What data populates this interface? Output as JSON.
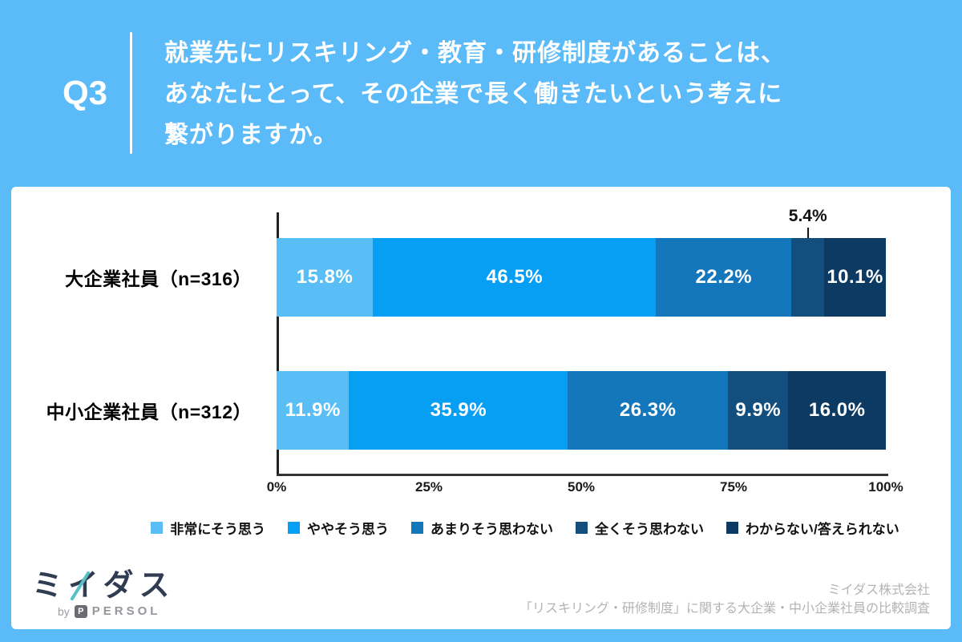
{
  "header": {
    "qnumber": "Q3",
    "question_lines": [
      "就業先にリスキリング・教育・研修制度があることは、",
      "あなたにとって、その企業で長く働きたいという考えに",
      "繋がりますか。"
    ]
  },
  "chart_data": {
    "type": "bar",
    "orientation": "horizontal-stacked",
    "unit": "percent",
    "xlim": [
      0,
      100
    ],
    "x_ticks": [
      {
        "label": "0%",
        "value": 0
      },
      {
        "label": "25%",
        "value": 25
      },
      {
        "label": "50%",
        "value": 50
      },
      {
        "label": "75%",
        "value": 75
      },
      {
        "label": "100%",
        "value": 100
      }
    ],
    "grid": false,
    "legend_position": "bottom",
    "legend": [
      {
        "label": "非常にそう思う",
        "color": "#58BEF5"
      },
      {
        "label": "ややそう思う",
        "color": "#069FF3"
      },
      {
        "label": "あまりそう思わない",
        "color": "#1477BC"
      },
      {
        "label": "全くそう思わない",
        "color": "#124F7E"
      },
      {
        "label": "わからない/答えられない",
        "color": "#0D3A63"
      }
    ],
    "rows": [
      {
        "category": "大企業社員（n=316）",
        "values": [
          15.8,
          46.5,
          22.2,
          5.4,
          10.1
        ],
        "labels": [
          "15.8%",
          "46.5%",
          "22.2%",
          "5.4%",
          "10.1%"
        ],
        "callout_index": 3
      },
      {
        "category": "中小企業社員（n=312）",
        "values": [
          11.9,
          35.9,
          26.3,
          9.9,
          16.0
        ],
        "labels": [
          "11.9%",
          "35.9%",
          "26.3%",
          "9.9%",
          "16.0%"
        ],
        "callout_index": null
      }
    ]
  },
  "footer": {
    "logo_text": "ミイダス",
    "logo_by": "by",
    "logo_mark": "P",
    "logo_brand": "PERSOL",
    "source_line1": "ミイダス株式会社",
    "source_line2": "「リスキリング・研修制度」に関する大企業・中小企業社員の比較調査"
  },
  "colors": {
    "background": "#5BBAF8",
    "card": "#FFFFFF",
    "axis": "#222222",
    "bar_label": "#FFFFFF",
    "row_label": "#000000",
    "footer_text": "#B3B3B3",
    "logo_navy": "#303C52",
    "logo_teal": "#56C2C6"
  }
}
